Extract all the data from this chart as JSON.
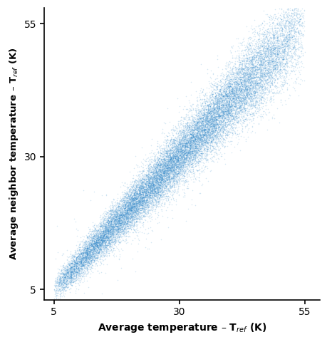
{
  "title": "",
  "xlabel": "Average temperature – T$_{ref}$ (K)",
  "ylabel": "Average neighbor temperature – T$_{ref}$ (K)",
  "xlim": [
    3,
    58
  ],
  "ylim": [
    3,
    58
  ],
  "xticks": [
    5,
    30,
    55
  ],
  "yticks": [
    5,
    30,
    55
  ],
  "dot_color": "#1a7bc4",
  "dot_alpha": 0.18,
  "dot_size": 1.2,
  "n_points": 25000,
  "seed": 42,
  "noise_base": 1.2,
  "noise_scale": 0.06,
  "x_min": 5,
  "x_max": 55
}
